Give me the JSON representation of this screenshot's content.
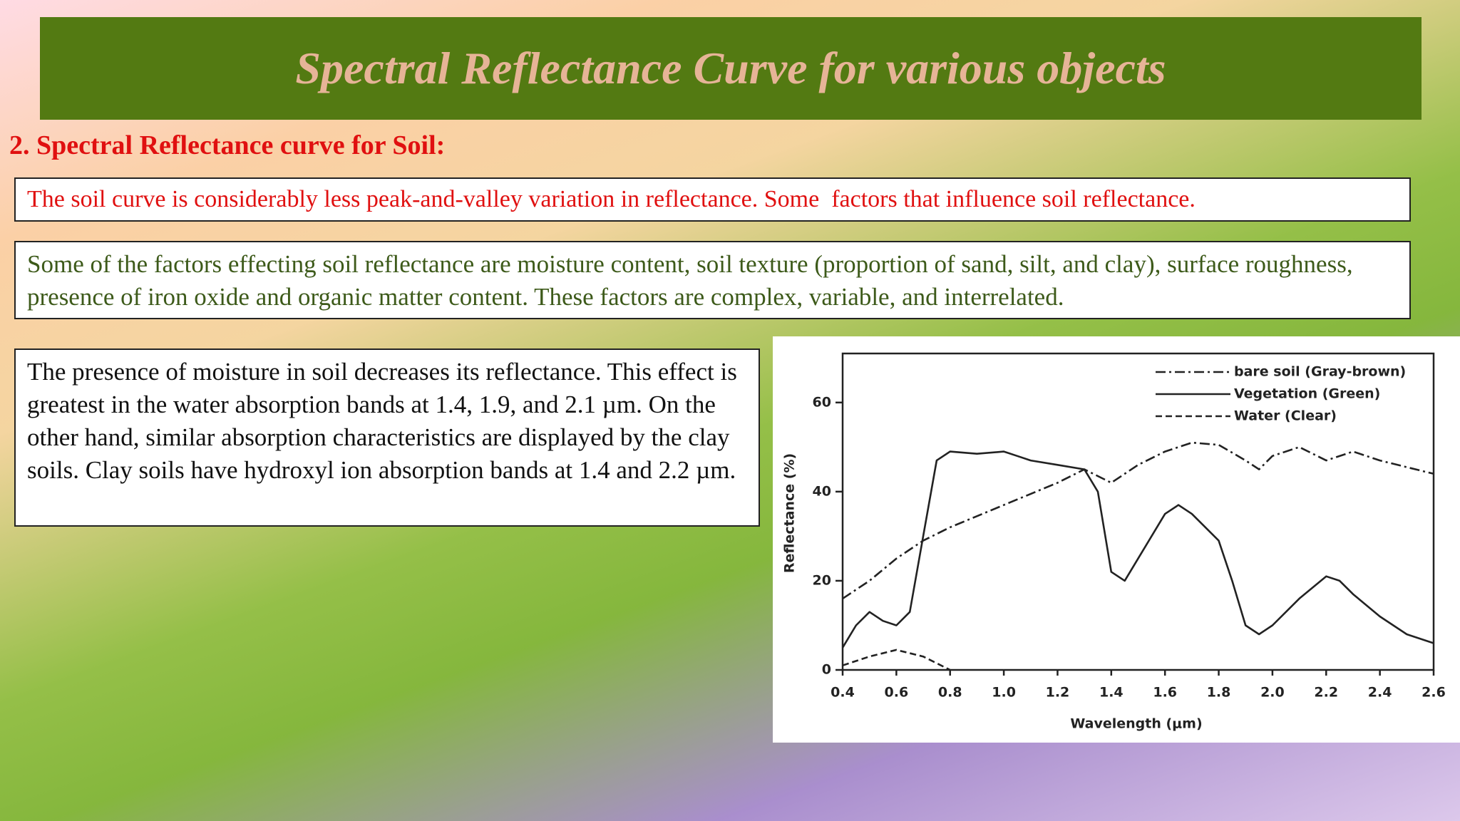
{
  "header": {
    "title": "Spectral Reflectance Curve for various objects"
  },
  "section": {
    "heading": "2. Spectral Reflectance curve for Soil:"
  },
  "boxes": [
    "The soil curve is considerably less peak-and-valley variation in reflectance. Some  factors that influence soil reflectance.",
    "Some of the factors effecting soil reflectance are moisture content, soil texture (proportion of sand, silt, and clay), surface roughness, presence of iron oxide and organic matter content. These factors are complex, variable, and interrelated.",
    "The presence of moisture in soil decreases its reflectance. This effect is greatest in the water absorption bands at 1.4, 1.9, and 2.1 µm. On the other hand, similar absorption characteristics are displayed by the clay soils. Clay soils have hydroxyl ion absorption bands at 1.4 and 2.2 µm."
  ],
  "chart_data": {
    "type": "line",
    "x_label": "Wavelength (μm)",
    "y_label": "Reflectance (%)",
    "xlim": [
      0.4,
      2.6
    ],
    "ylim": [
      0,
      71
    ],
    "xticks": [
      0.4,
      0.6,
      0.8,
      {
        "value": 1,
        "label": "1.0"
      },
      1.2,
      1.4,
      1.6,
      1.8,
      {
        "value": 2,
        "label": "2.0"
      },
      2.2,
      2.4,
      2.6
    ],
    "yticks": [
      0,
      20,
      40,
      60
    ],
    "grid": false,
    "legend": "upper right",
    "series": [
      {
        "name": "bare soil (Gray-brown)",
        "color": "#222222",
        "line_style": "dashdot",
        "x": [
          0.4,
          0.5,
          0.6,
          0.7,
          0.8,
          1.0,
          1.2,
          1.3,
          1.4,
          1.5,
          1.6,
          1.7,
          1.8,
          1.9,
          1.95,
          2.0,
          2.1,
          2.2,
          2.3,
          2.4,
          2.5,
          2.6
        ],
        "values": [
          16,
          20,
          25,
          29,
          32,
          37,
          42,
          45,
          42,
          46,
          49,
          51,
          50.5,
          47,
          45,
          48,
          50,
          47,
          49,
          47,
          45.5,
          44
        ]
      },
      {
        "name": "Vegetation (Green)",
        "color": "#222222",
        "line_style": "solid",
        "x": [
          0.4,
          0.45,
          0.5,
          0.55,
          0.6,
          0.65,
          0.7,
          0.75,
          0.8,
          0.9,
          1.0,
          1.05,
          1.1,
          1.2,
          1.3,
          1.35,
          1.4,
          1.45,
          1.5,
          1.6,
          1.65,
          1.7,
          1.8,
          1.85,
          1.9,
          1.95,
          2.0,
          2.1,
          2.2,
          2.25,
          2.3,
          2.4,
          2.5,
          2.6
        ],
        "values": [
          5,
          10,
          13,
          11,
          10,
          13,
          30,
          47,
          49,
          48.5,
          49,
          48,
          47,
          46,
          45,
          40,
          22,
          20,
          25,
          35,
          37,
          35,
          29,
          20,
          10,
          8,
          10,
          16,
          21,
          20,
          17,
          12,
          8,
          6
        ]
      },
      {
        "name": "Water (Clear)",
        "color": "#222222",
        "line_style": "dashed",
        "x": [
          0.4,
          0.5,
          0.6,
          0.7,
          0.8
        ],
        "values": [
          1,
          3,
          4.5,
          3,
          0
        ]
      }
    ]
  }
}
